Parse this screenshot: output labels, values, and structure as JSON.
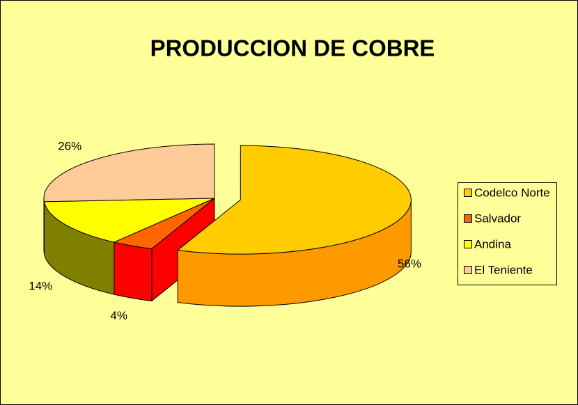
{
  "chart_data": {
    "type": "pie",
    "title": "PRODUCCION DE COBRE",
    "categories": [
      "Codelco Norte",
      "Salvador",
      "Andina",
      "El Teniente"
    ],
    "values": [
      56,
      4,
      14,
      26
    ],
    "value_labels": [
      "56%",
      "4%",
      "14%",
      "26%"
    ],
    "colors": [
      "#FFCC00",
      "#FF6600",
      "#FFFF00",
      "#FFCC99"
    ],
    "side_colors": [
      "#FF9900",
      "#FF0000",
      "#808000",
      "#CC9966"
    ],
    "explode": [
      true,
      false,
      false,
      false
    ],
    "legend": "right"
  }
}
